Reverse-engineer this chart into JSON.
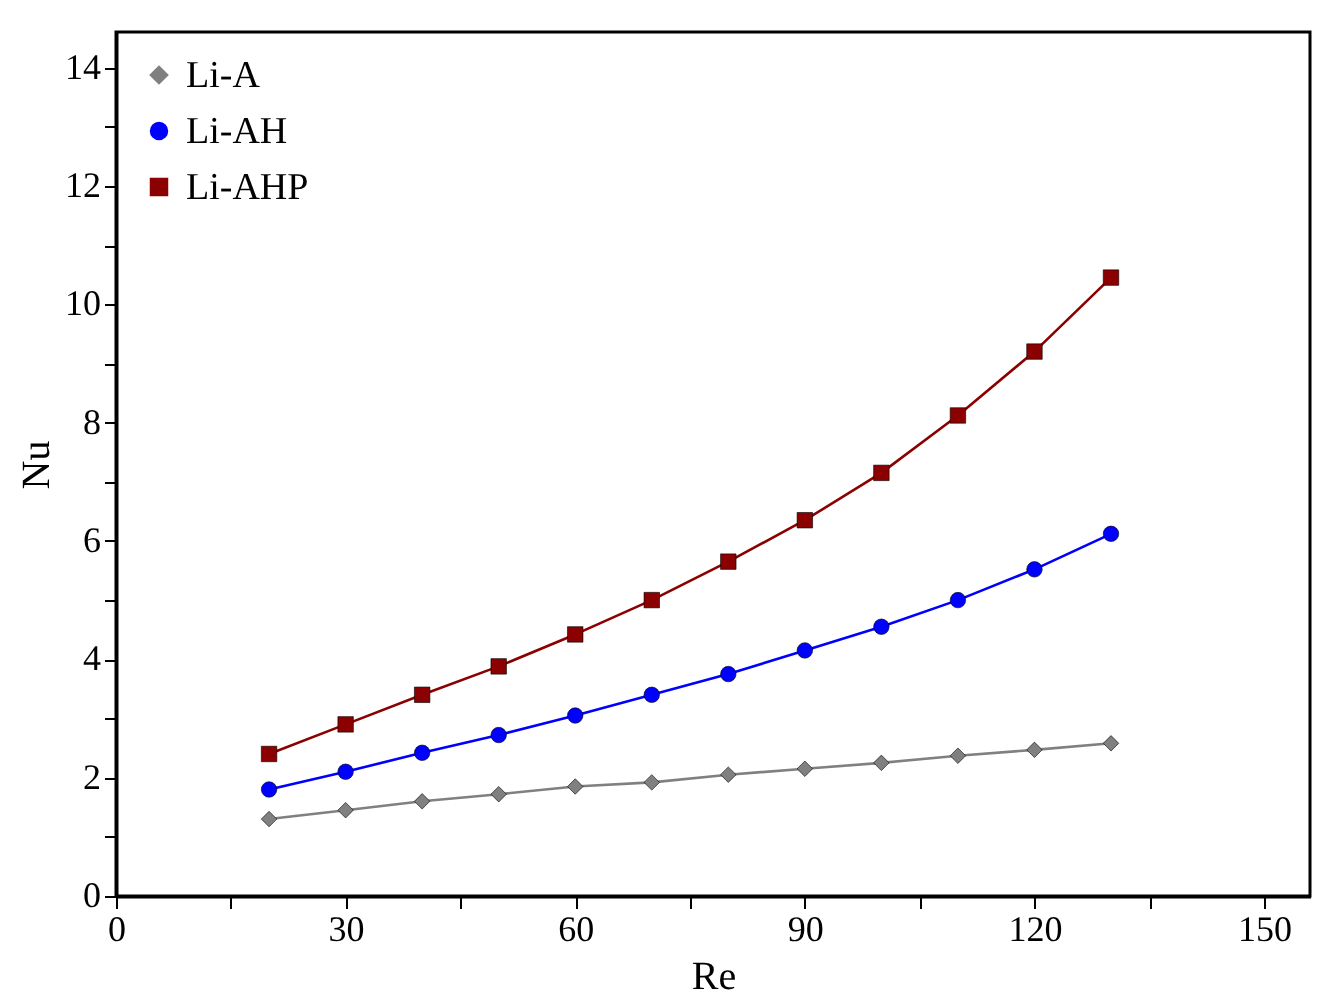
{
  "chart_data": {
    "type": "line",
    "xlabel": "Re",
    "ylabel": "Nu",
    "x": [
      20,
      30,
      40,
      50,
      60,
      70,
      80,
      90,
      100,
      110,
      120,
      130
    ],
    "xlim": [
      0,
      156
    ],
    "ylim": [
      0,
      14.6
    ],
    "xticks": [
      0,
      {
        "value": 15,
        "label": null
      },
      30,
      {
        "value": 45,
        "label": null
      },
      60,
      {
        "value": 75,
        "label": null
      },
      90,
      {
        "value": 105,
        "label": null
      },
      120,
      {
        "value": 135,
        "label": null
      },
      150
    ],
    "yticks": [
      0,
      {
        "value": 1,
        "label": null
      },
      2,
      {
        "value": 3,
        "label": null
      },
      4,
      {
        "value": 5,
        "label": null
      },
      6,
      {
        "value": 7,
        "label": null
      },
      8,
      {
        "value": 9,
        "label": null
      },
      10,
      {
        "value": 11,
        "label": null
      },
      12,
      {
        "value": 13,
        "label": null
      },
      14
    ],
    "grid": false,
    "legend": "top left",
    "line_style": "solid",
    "series": [
      {
        "name": "Li-A",
        "color": "#808080",
        "marker": "diamond",
        "values": [
          1.3,
          1.45,
          1.6,
          1.72,
          1.85,
          1.92,
          2.05,
          2.15,
          2.25,
          2.37,
          2.47,
          2.58
        ]
      },
      {
        "name": "Li-AH",
        "color": "#0000ff",
        "marker": "circle",
        "values": [
          1.8,
          2.1,
          2.42,
          2.72,
          3.05,
          3.4,
          3.75,
          4.15,
          4.55,
          5.0,
          5.52,
          6.12
        ]
      },
      {
        "name": "Li-AHP",
        "color": "#8b0000",
        "marker": "square",
        "values": [
          2.4,
          2.9,
          3.4,
          3.88,
          4.42,
          5.0,
          5.65,
          6.35,
          7.15,
          8.12,
          9.2,
          10.45
        ]
      }
    ]
  }
}
